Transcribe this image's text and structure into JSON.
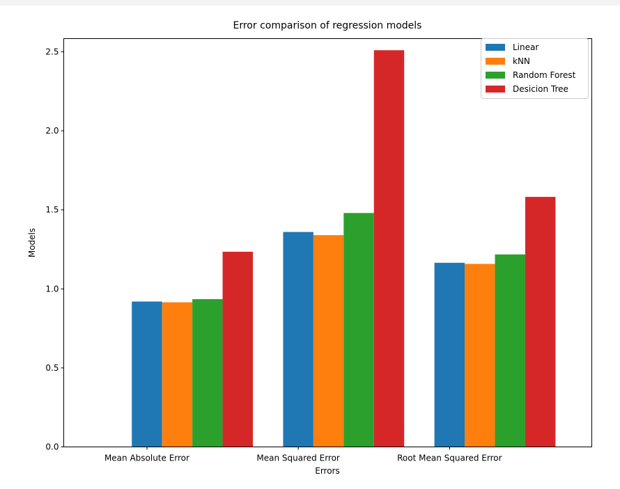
{
  "chart_data": {
    "type": "bar",
    "title": "Error comparison of regression models",
    "xlabel": "Errors",
    "ylabel": "Models",
    "categories": [
      "Mean Absolute Error",
      "Mean Squared Error",
      "Root Mean Squared Error"
    ],
    "series": [
      {
        "name": "Linear",
        "color": "#1f77b4",
        "values": [
          0.92,
          1.36,
          1.165
        ]
      },
      {
        "name": "kNN",
        "color": "#ff7f0e",
        "values": [
          0.915,
          1.34,
          1.158
        ]
      },
      {
        "name": "Random Forest",
        "color": "#2ca02c",
        "values": [
          0.935,
          1.48,
          1.218
        ]
      },
      {
        "name": "Desicion Tree",
        "color": "#d62728",
        "values": [
          1.235,
          2.51,
          1.582
        ]
      }
    ],
    "ylim": [
      0,
      2.5835
    ],
    "yticks": [
      "0.0",
      "0.5",
      "1.0",
      "1.5",
      "2.0",
      "2.5"
    ],
    "grid": false,
    "legend_position": "top-right"
  }
}
